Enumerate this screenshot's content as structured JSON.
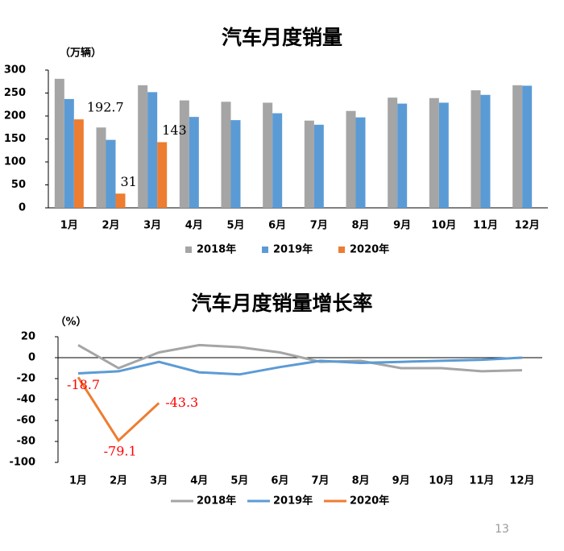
{
  "chart_data": [
    {
      "type": "bar",
      "title": "汽车月度销量",
      "y_label": "（万辆）",
      "categories": [
        "1月",
        "2月",
        "3月",
        "4月",
        "5月",
        "6月",
        "7月",
        "8月",
        "9月",
        "10月",
        "11月",
        "12月"
      ],
      "series": [
        {
          "name": "2018年",
          "color": "#a5a5a5",
          "values": [
            281,
            175,
            267,
            234,
            231,
            229,
            190,
            211,
            240,
            239,
            256,
            267
          ]
        },
        {
          "name": "2019年",
          "color": "#5b9bd5",
          "values": [
            237,
            148,
            252,
            198,
            191,
            206,
            181,
            197,
            227,
            229,
            246,
            266
          ]
        },
        {
          "name": "2020年",
          "color": "#ed7d31",
          "values": [
            192.7,
            31,
            143,
            null,
            null,
            null,
            null,
            null,
            null,
            null,
            null,
            null
          ]
        }
      ],
      "ylim": [
        0,
        300
      ],
      "yticks": [
        0,
        50,
        100,
        150,
        200,
        250,
        300
      ],
      "legend": "bottom"
    },
    {
      "type": "line",
      "title": "汽车月度销量增长率",
      "y_label": "（%）",
      "categories": [
        "1月",
        "2月",
        "3月",
        "4月",
        "5月",
        "6月",
        "7月",
        "8月",
        "9月",
        "10月",
        "11月",
        "12月"
      ],
      "series": [
        {
          "name": "2018年",
          "color": "#a5a5a5",
          "values": [
            12,
            -10,
            5,
            12,
            10,
            5,
            -4,
            -3,
            -10,
            -10,
            -13,
            -12
          ]
        },
        {
          "name": "2019年",
          "color": "#5b9bd5",
          "values": [
            -15,
            -13,
            -4,
            -14,
            -16,
            -9,
            -3,
            -5,
            -4,
            -3,
            -2,
            0
          ]
        },
        {
          "name": "2020年",
          "color": "#ed7d31",
          "values": [
            -18.7,
            -79.1,
            -43.3,
            null,
            null,
            null,
            null,
            null,
            null,
            null,
            null,
            null
          ]
        }
      ],
      "ylim": [
        -100,
        20
      ],
      "yticks": [
        -100,
        -80,
        -60,
        -40,
        -20,
        0,
        20
      ],
      "legend": "bottom"
    }
  ],
  "page_number": "13"
}
